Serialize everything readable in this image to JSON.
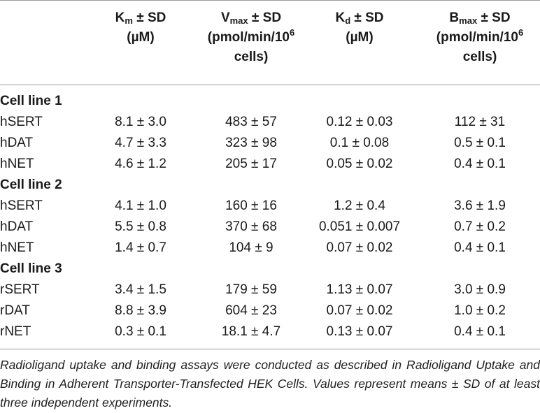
{
  "header": {
    "col1": {
      "sym": "K",
      "sub": "m",
      "rest": " ± SD",
      "unit": "(µM)"
    },
    "col2": {
      "sym": "V",
      "sub": "max",
      "rest": " ± SD",
      "unit_a": "(pmol/min/10",
      "unit_sup": "6",
      "unit_b": "cells)"
    },
    "col3": {
      "sym": "K",
      "sub": "d",
      "rest": " ± SD",
      "unit": "(µM)"
    },
    "col4": {
      "sym": "B",
      "sub": "max",
      "rest": " ± SD",
      "unit_a": "(pmol/min/10",
      "unit_sup": "6",
      "unit_b": "cells)"
    }
  },
  "groups": [
    {
      "title": "Cell line 1",
      "rows": [
        {
          "name": "hSERT",
          "km": "8.1 ± 3.0",
          "vmax": "483 ± 57",
          "kd": "0.12 ± 0.03",
          "bmax": "112 ± 31"
        },
        {
          "name": "hDAT",
          "km": "4.7 ± 3.3",
          "vmax": "323 ± 98",
          "kd": "0.1 ± 0.08",
          "bmax": "0.5 ± 0.1"
        },
        {
          "name": "hNET",
          "km": "4.6 ± 1.2",
          "vmax": "205 ± 17",
          "kd": "0.05 ± 0.02",
          "bmax": "0.4 ± 0.1"
        }
      ]
    },
    {
      "title": "Cell line 2",
      "rows": [
        {
          "name": "hSERT",
          "km": "4.1 ± 1.0",
          "vmax": "160 ± 16",
          "kd": "1.2 ± 0.4",
          "bmax": "3.6 ± 1.9"
        },
        {
          "name": "hDAT",
          "km": "5.5 ± 0.8",
          "vmax": "370 ± 68",
          "kd": "0.051 ± 0.007",
          "bmax": "0.7 ± 0.2"
        },
        {
          "name": "hNET",
          "km": "1.4 ± 0.7",
          "vmax": "104 ± 9",
          "kd": "0.07 ± 0.02",
          "bmax": "0.4 ± 0.1"
        }
      ]
    },
    {
      "title": "Cell line 3",
      "rows": [
        {
          "name": "rSERT",
          "km": "3.4 ± 1.5",
          "vmax": "179 ± 59",
          "kd": "1.13 ± 0.07",
          "bmax": "3.0 ± 0.9"
        },
        {
          "name": "rDAT",
          "km": "8.8 ± 3.9",
          "vmax": "604 ± 23",
          "kd": "0.07 ± 0.02",
          "bmax": "1.0 ± 0.2"
        },
        {
          "name": "rNET",
          "km": "0.3 ± 0.1",
          "vmax": "18.1 ± 4.7",
          "kd": "0.13 ± 0.07",
          "bmax": "0.4 ± 0.1"
        }
      ]
    }
  ],
  "footnote": "Radioligand uptake and binding assays were conducted as described in Radioligand Uptake and Binding in Adherent Transporter-Transfected HEK Cells. Values represent means ± SD of at least three independent experiments."
}
